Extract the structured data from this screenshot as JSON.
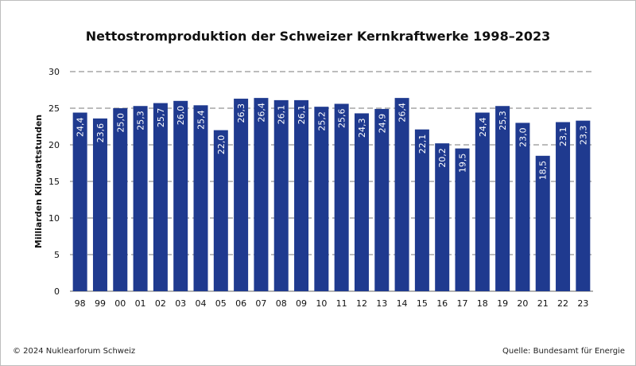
{
  "chart_data": {
    "type": "bar",
    "title": "Nettostromproduktion der Schweizer Kernkraftwerke 1998–2023",
    "xlabel": "",
    "ylabel": "Milliarden Kilowattstunden",
    "ylim": [
      0,
      30
    ],
    "yticks": [
      "0",
      "5",
      "10",
      "15",
      "20",
      "25",
      "30"
    ],
    "grid": "dashed-horizontal",
    "bar_color": "#1f3a8f",
    "categories": [
      "98",
      "99",
      "00",
      "01",
      "02",
      "03",
      "04",
      "05",
      "06",
      "07",
      "08",
      "09",
      "10",
      "11",
      "12",
      "13",
      "14",
      "15",
      "16",
      "17",
      "18",
      "19",
      "20",
      "21",
      "22",
      "23"
    ],
    "values": [
      24.4,
      23.6,
      25.0,
      25.3,
      25.7,
      26.0,
      25.4,
      22.0,
      26.3,
      26.4,
      26.1,
      26.1,
      25.2,
      25.6,
      24.3,
      24.9,
      26.4,
      22.1,
      20.2,
      19.5,
      24.4,
      25.3,
      23.0,
      18.5,
      23.1,
      23.3
    ],
    "value_labels": [
      "24,4",
      "23,6",
      "25,0",
      "25,3",
      "25,7",
      "26,0",
      "25,4",
      "22,0",
      "26,3",
      "26,4",
      "26,1",
      "26,1",
      "25,2",
      "25,6",
      "24,3",
      "24,9",
      "26,4",
      "22,1",
      "20,2",
      "19,5",
      "24,4",
      "25,3",
      "23,0",
      "18,5",
      "23,1",
      "23,3"
    ]
  },
  "footer": {
    "copyright": "© 2024 Nuklearforum Schweiz",
    "source": "Quelle: Bundesamt für Energie"
  }
}
